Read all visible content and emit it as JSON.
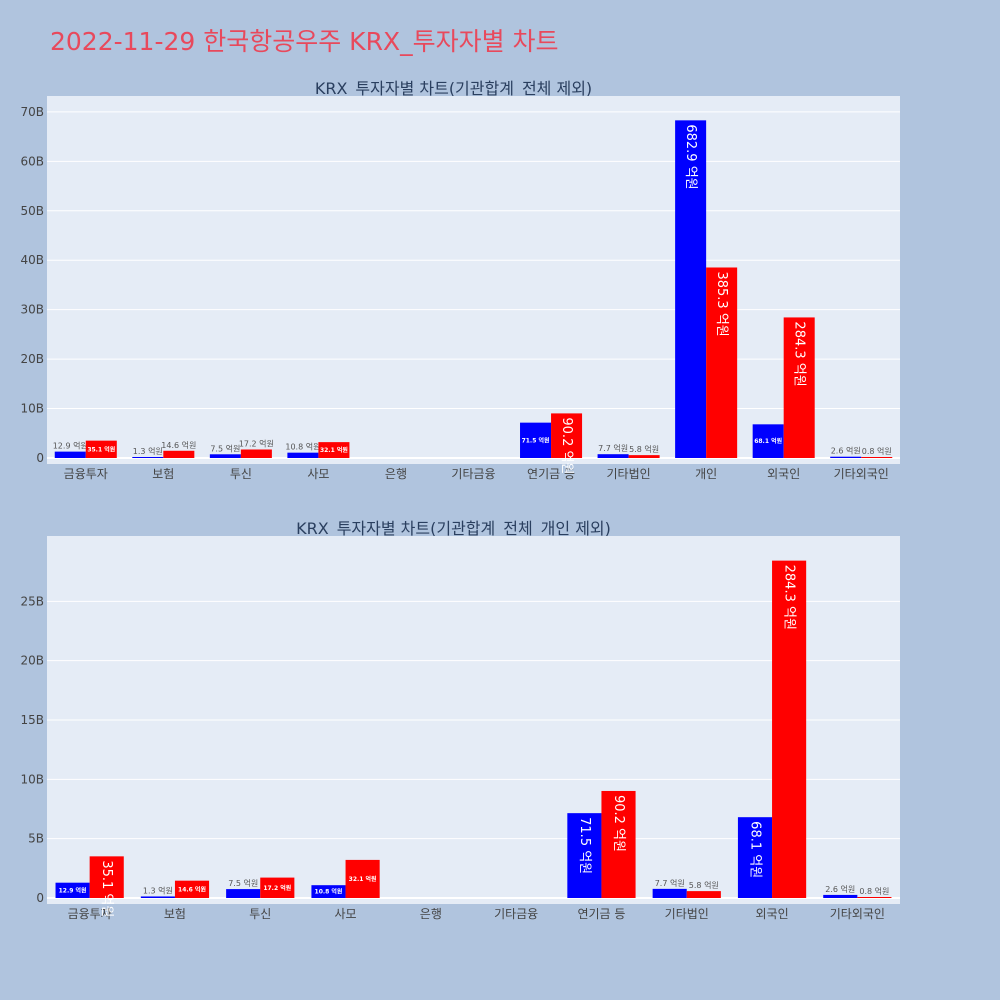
{
  "page": {
    "title": "2022-11-29 한국항공우주 KRX_투자자별 차트",
    "background": "#b0c4de",
    "plot_background": "#e5ecf6",
    "title_color": "#e8495c"
  },
  "chart_data": [
    {
      "type": "bar",
      "title": "KRX_투자자별 차트(기관합계_전체 제외)",
      "categories": [
        "금융투자",
        "보험",
        "투신",
        "사모",
        "은행",
        "기타금융",
        "연기금 등",
        "기타법인",
        "개인",
        "외국인",
        "기타외국인"
      ],
      "series": [
        {
          "color": "#0000ff",
          "values": [
            1.29,
            0.13,
            0.75,
            1.08,
            0,
            0,
            7.15,
            0.77,
            68.29,
            6.81,
            0.26
          ],
          "labels": [
            "12.9 억원",
            "1.3 억원",
            "7.5 억원",
            "10.8 억원",
            "",
            "",
            "71.5 억원",
            "7.7 억원",
            "682.9 억원",
            "68.1 억원",
            "2.6 억원"
          ]
        },
        {
          "color": "#ff0000",
          "values": [
            3.51,
            1.46,
            1.72,
            3.21,
            0,
            0,
            9.02,
            0.58,
            38.53,
            28.43,
            0.08
          ],
          "labels": [
            "35.1 억원",
            "14.6 억원",
            "17.2 억원",
            "32.1 억원",
            "",
            "",
            "90.2 억원",
            "5.8 억원",
            "385.3 억원",
            "284.3 억원",
            "0.8 억원"
          ]
        }
      ],
      "ylim": [
        0,
        72
      ],
      "yticks": [
        0,
        10,
        20,
        30,
        40,
        50,
        60,
        70
      ],
      "ytick_labels": [
        "0",
        "10B",
        "20B",
        "30B",
        "40B",
        "50B",
        "60B",
        "70B"
      ],
      "grid": true
    },
    {
      "type": "bar",
      "title": "KRX_투자자별 차트(기관합계_전체_개인 제외)",
      "categories": [
        "금융투자",
        "보험",
        "투신",
        "사모",
        "은행",
        "기타금융",
        "연기금 등",
        "기타법인",
        "외국인",
        "기타외국인"
      ],
      "series": [
        {
          "color": "#0000ff",
          "values": [
            1.29,
            0.13,
            0.75,
            1.08,
            0,
            0,
            7.15,
            0.77,
            6.81,
            0.26
          ],
          "labels": [
            "12.9 억원",
            "1.3 억원",
            "7.5 억원",
            "10.8 억원",
            "",
            "",
            "71.5 억원",
            "7.7 억원",
            "68.1 억원",
            "2.6 억원"
          ]
        },
        {
          "color": "#ff0000",
          "values": [
            3.51,
            1.46,
            1.72,
            3.21,
            0,
            0,
            9.02,
            0.58,
            28.43,
            0.08
          ],
          "labels": [
            "35.1 억원",
            "14.6 억원",
            "17.2 억원",
            "32.1 억원",
            "",
            "",
            "90.2 억원",
            "5.8 억원",
            "284.3 억원",
            "0.8 억원"
          ]
        }
      ],
      "ylim": [
        0,
        30
      ],
      "yticks": [
        0,
        5,
        10,
        15,
        20,
        25
      ],
      "ytick_labels": [
        "0",
        "5B",
        "10B",
        "15B",
        "20B",
        "25B"
      ],
      "grid": true
    }
  ]
}
